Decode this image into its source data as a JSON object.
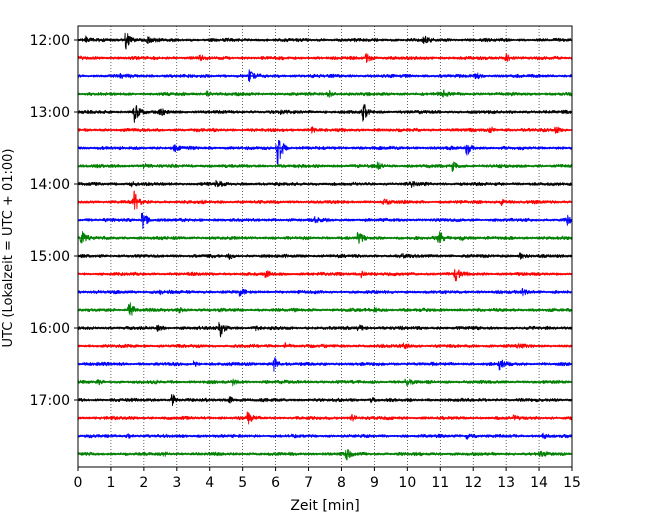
{
  "chart_data": {
    "type": "line",
    "title": "",
    "xlabel": "Zeit  [min]",
    "ylabel": "UTC (Lokalzeit = UTC + 01:00)",
    "xlim": [
      0,
      15
    ],
    "x_ticks": [
      "0",
      "1",
      "2",
      "3",
      "4",
      "5",
      "6",
      "7",
      "8",
      "9",
      "10",
      "11",
      "12",
      "13",
      "14",
      "15"
    ],
    "y_ticks": [
      {
        "label": "12:00",
        "trace_index": 0
      },
      {
        "label": "13:00",
        "trace_index": 4
      },
      {
        "label": "14:00",
        "trace_index": 8
      },
      {
        "label": "15:00",
        "trace_index": 12
      },
      {
        "label": "16:00",
        "trace_index": 16
      },
      {
        "label": "17:00",
        "trace_index": 20
      }
    ],
    "trace_minutes": 15,
    "trace_colors": [
      "#000000",
      "#ff0000",
      "#0000ff",
      "#008000"
    ],
    "grid": "vertical-dotted",
    "traces": [
      {
        "start": "12:00",
        "events": [
          [
            1.45,
            1.0
          ],
          [
            0.25,
            0.3
          ],
          [
            2.1,
            0.3
          ],
          [
            10.5,
            0.35
          ]
        ]
      },
      {
        "start": "12:15",
        "events": [
          [
            8.75,
            0.45
          ],
          [
            13.0,
            0.45
          ],
          [
            3.7,
            0.25
          ]
        ]
      },
      {
        "start": "12:30",
        "events": [
          [
            5.2,
            0.6
          ],
          [
            12.05,
            0.35
          ],
          [
            1.3,
            0.2
          ]
        ]
      },
      {
        "start": "12:45",
        "events": [
          [
            3.9,
            0.35
          ],
          [
            7.6,
            0.35
          ],
          [
            11.1,
            0.3
          ]
        ]
      },
      {
        "start": "13:00",
        "events": [
          [
            1.7,
            1.2
          ],
          [
            8.65,
            1.0
          ],
          [
            2.5,
            0.3
          ],
          [
            6.1,
            0.2
          ]
        ]
      },
      {
        "start": "13:15",
        "events": [
          [
            7.1,
            0.35
          ],
          [
            12.5,
            0.3
          ],
          [
            14.5,
            0.3
          ]
        ]
      },
      {
        "start": "13:30",
        "events": [
          [
            6.05,
            2.2
          ],
          [
            11.8,
            0.75
          ],
          [
            2.9,
            0.35
          ]
        ]
      },
      {
        "start": "13:45",
        "events": [
          [
            11.35,
            0.7
          ],
          [
            2.0,
            0.25
          ],
          [
            9.1,
            0.3
          ]
        ]
      },
      {
        "start": "14:00",
        "events": [
          [
            4.2,
            0.3
          ],
          [
            10.1,
            0.3
          ],
          [
            1.6,
            0.25
          ]
        ]
      },
      {
        "start": "14:15",
        "events": [
          [
            1.7,
            1.2
          ],
          [
            9.3,
            0.3
          ],
          [
            12.85,
            0.35
          ]
        ]
      },
      {
        "start": "14:30",
        "events": [
          [
            1.95,
            1.0
          ],
          [
            14.85,
            0.55
          ],
          [
            7.2,
            0.25
          ]
        ]
      },
      {
        "start": "14:45",
        "events": [
          [
            0.1,
            0.75
          ],
          [
            8.5,
            0.55
          ],
          [
            10.95,
            0.85
          ],
          [
            11.6,
            0.35
          ]
        ]
      },
      {
        "start": "15:00",
        "events": [
          [
            13.4,
            0.3
          ],
          [
            4.6,
            0.25
          ],
          [
            9.8,
            0.25
          ]
        ]
      },
      {
        "start": "15:15",
        "events": [
          [
            11.45,
            0.8
          ],
          [
            8.6,
            0.35
          ],
          [
            5.7,
            0.3
          ]
        ]
      },
      {
        "start": "15:30",
        "events": [
          [
            4.9,
            0.3
          ],
          [
            13.5,
            0.3
          ],
          [
            2.5,
            0.2
          ]
        ]
      },
      {
        "start": "15:45",
        "events": [
          [
            1.55,
            0.9
          ],
          [
            3.0,
            0.4
          ],
          [
            9.0,
            0.25
          ]
        ]
      },
      {
        "start": "16:00",
        "events": [
          [
            4.3,
            1.05
          ],
          [
            8.5,
            0.35
          ],
          [
            5.3,
            0.3
          ],
          [
            2.4,
            0.25
          ]
        ]
      },
      {
        "start": "16:15",
        "events": [
          [
            9.9,
            0.35
          ],
          [
            13.3,
            0.3
          ],
          [
            6.3,
            0.25
          ]
        ]
      },
      {
        "start": "16:30",
        "events": [
          [
            5.95,
            0.75
          ],
          [
            12.8,
            0.6
          ],
          [
            3.5,
            0.2
          ]
        ]
      },
      {
        "start": "16:45",
        "events": [
          [
            4.7,
            0.3
          ],
          [
            9.95,
            0.35
          ],
          [
            0.6,
            0.2
          ]
        ]
      },
      {
        "start": "17:00",
        "events": [
          [
            2.85,
            0.7
          ],
          [
            4.6,
            0.3
          ],
          [
            8.9,
            0.2
          ]
        ]
      },
      {
        "start": "17:15",
        "events": [
          [
            5.15,
            0.6
          ],
          [
            8.3,
            0.35
          ],
          [
            13.2,
            0.3
          ]
        ]
      },
      {
        "start": "17:30",
        "events": [
          [
            11.8,
            0.3
          ],
          [
            14.1,
            0.3
          ],
          [
            1.5,
            0.2
          ]
        ]
      },
      {
        "start": "17:45",
        "events": [
          [
            8.15,
            0.55
          ],
          [
            14.0,
            0.3
          ],
          [
            2.6,
            0.2
          ]
        ]
      }
    ]
  }
}
